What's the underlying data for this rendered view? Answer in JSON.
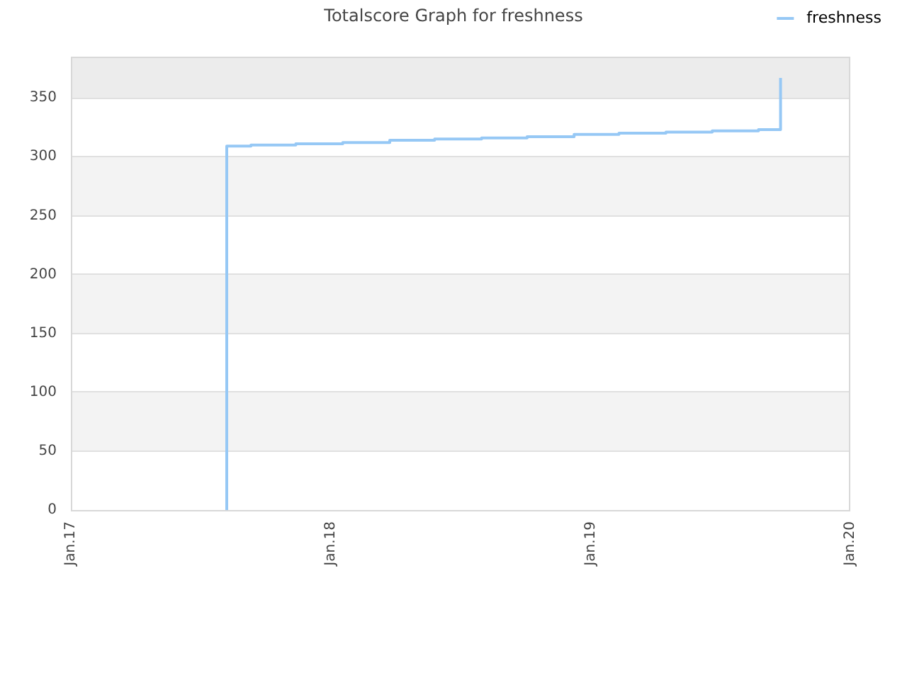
{
  "chart_data": {
    "type": "step",
    "title": "Totalscore Graph for freshness",
    "x": [
      "2017-08-08",
      "2017-08-08",
      "2017-09-11",
      "2017-11-13",
      "2018-01-18",
      "2018-03-25",
      "2018-05-27",
      "2018-08-01",
      "2018-10-04",
      "2018-12-09",
      "2019-02-10",
      "2019-04-17",
      "2019-06-21",
      "2019-08-25",
      "2019-09-25"
    ],
    "series": [
      {
        "name": "freshness",
        "color": "#96c8f5",
        "values": [
          0,
          309,
          310,
          311,
          312,
          314,
          315,
          316,
          317,
          319,
          320,
          321,
          322,
          323,
          367
        ]
      }
    ],
    "xlim": [
      "2017-01-01",
      "2020-01-01"
    ],
    "xticks": [
      {
        "value": "2017-01-01",
        "label": "Jan.17"
      },
      {
        "value": "2018-01-01",
        "label": "Jan.18"
      },
      {
        "value": "2019-01-01",
        "label": "Jan.19"
      },
      {
        "value": "2020-01-01",
        "label": "Jan.20"
      }
    ],
    "ylim": [
      0,
      385
    ],
    "yticks": [
      0,
      50,
      100,
      150,
      200,
      250,
      300,
      350
    ],
    "bands": [
      {
        "axis": "y",
        "from": 50,
        "to": 100,
        "color": "#f3f3f3"
      },
      {
        "axis": "y",
        "from": 150,
        "to": 200,
        "color": "#f3f3f3"
      },
      {
        "axis": "y",
        "from": 250,
        "to": 300,
        "color": "#f3f3f3"
      },
      {
        "axis": "y",
        "from": 350,
        "to": 385,
        "color": "#ececec"
      }
    ],
    "grid": "y",
    "legend": "top right"
  }
}
